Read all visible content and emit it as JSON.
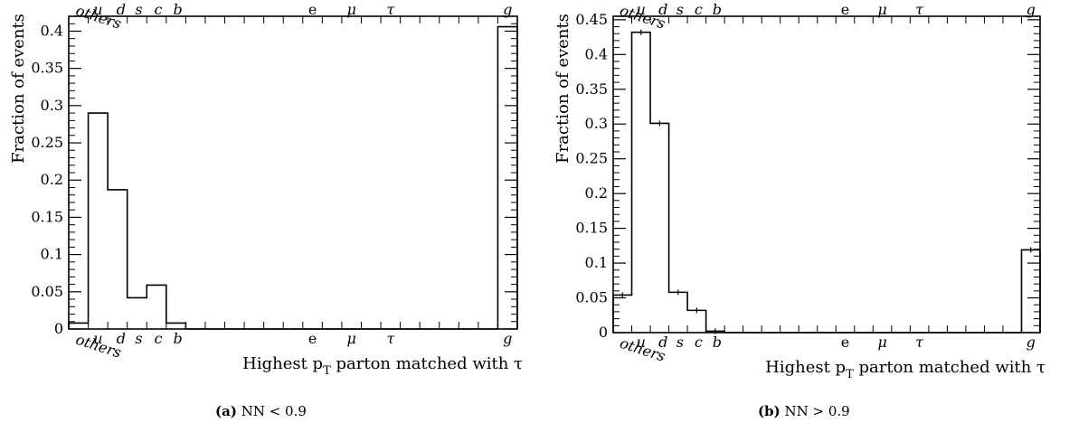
{
  "charts": [
    {
      "caption_label": "(a)",
      "caption_text": "NN < 0.9",
      "chart_data": {
        "type": "bar",
        "subtype": "histogram",
        "ylabel": "Fraction of events",
        "xlabel": "Highest p_T parton matched with τ",
        "xlabel_parts": {
          "pre": "Highest p",
          "sub": "T",
          "post": " parton matched with τ"
        },
        "ylim": [
          0,
          0.42
        ],
        "yticks": [
          "0",
          "0.05",
          "0.1",
          "0.15",
          "0.2",
          "0.25",
          "0.3",
          "0.35",
          "0.4"
        ],
        "top_labels": [
          "others",
          "u",
          "d",
          "s",
          "c",
          "b",
          "e",
          "μ",
          "τ",
          "g"
        ],
        "bottom_labels": [
          "others",
          "u",
          "d",
          "s",
          "c",
          "b",
          "e",
          "μ",
          "τ",
          "g"
        ],
        "categories": [
          "others",
          "u",
          "d",
          "s",
          "c",
          "b",
          "",
          "",
          "",
          "",
          "",
          "",
          "e",
          "",
          "μ",
          "",
          "τ",
          "",
          "",
          "",
          "",
          "",
          "g"
        ],
        "values": [
          0.008,
          0.29,
          0.187,
          0.042,
          0.059,
          0.008,
          0,
          0,
          0,
          0,
          0,
          0,
          0,
          0,
          0,
          0,
          0,
          0,
          0,
          0,
          0,
          0,
          0.406
        ],
        "error_bars": false,
        "grid": false
      }
    },
    {
      "caption_label": "(b)",
      "caption_text": "NN > 0.9",
      "chart_data": {
        "type": "bar",
        "subtype": "histogram",
        "ylabel": "Fraction of events",
        "xlabel": "Highest p_T parton matched with τ",
        "xlabel_parts": {
          "pre": "Highest p",
          "sub": "T",
          "post": " parton matched with τ"
        },
        "ylim": [
          0,
          0.455
        ],
        "yticks": [
          "0",
          "0.05",
          "0.1",
          "0.15",
          "0.2",
          "0.25",
          "0.3",
          "0.35",
          "0.4",
          "0.45"
        ],
        "top_labels": [
          "others",
          "u",
          "d",
          "s",
          "c",
          "b",
          "e",
          "μ",
          "τ",
          "g"
        ],
        "bottom_labels": [
          "others",
          "u",
          "d",
          "s",
          "c",
          "b",
          "e",
          "μ",
          "τ",
          "g"
        ],
        "categories": [
          "others",
          "u",
          "d",
          "s",
          "c",
          "b",
          "",
          "",
          "",
          "",
          "",
          "",
          "e",
          "",
          "μ",
          "",
          "τ",
          "",
          "",
          "",
          "",
          "",
          "g"
        ],
        "values": [
          0.054,
          0.432,
          0.301,
          0.058,
          0.032,
          0.002,
          0,
          0,
          0,
          0,
          0,
          0,
          0,
          0,
          0,
          0,
          0,
          0,
          0,
          0,
          0,
          0,
          0.119
        ],
        "error_bars": true,
        "grid": false
      }
    }
  ]
}
